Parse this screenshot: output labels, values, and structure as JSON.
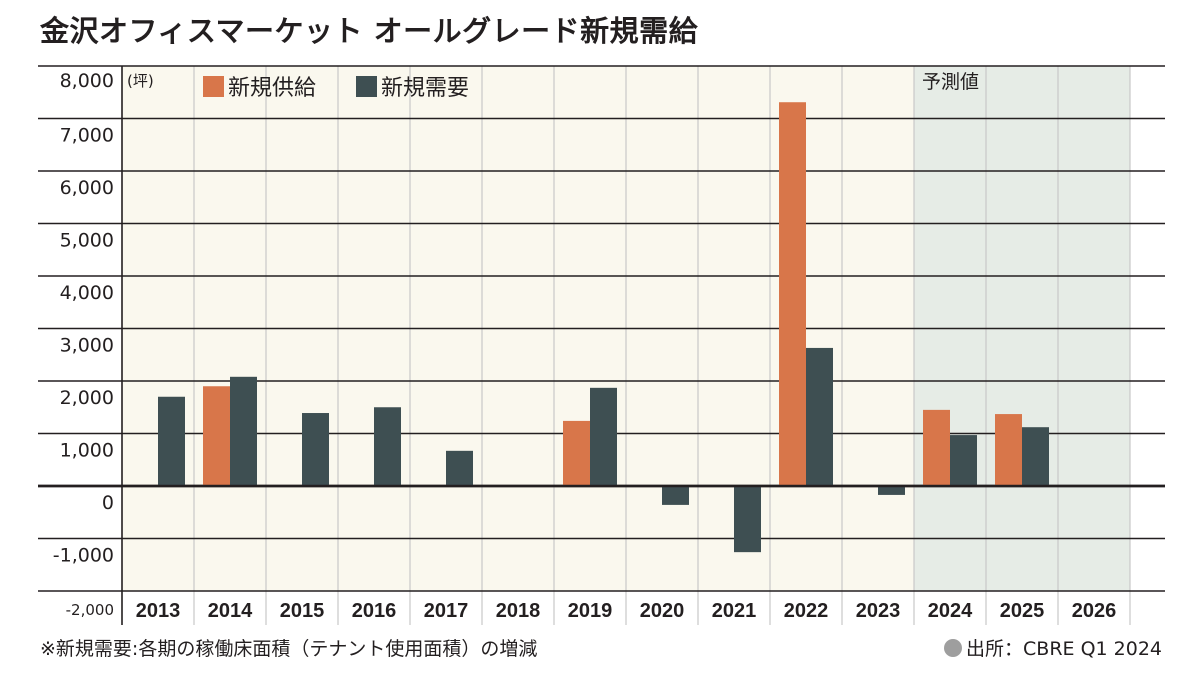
{
  "title": "金沢オフィスマーケット オールグレード新規需給",
  "footnote": "※新規需要:各期の稼働床面積（テナント使用面積）の増減",
  "source": "出所：CBRE Q1 2024",
  "colors": {
    "supply": "#d8764a",
    "demand": "#3e4f52",
    "plot_bg": "#faf8ee",
    "forecast_bg": "#e6ece6",
    "grid": "#231f20",
    "vgrid": "#c8c8c8"
  },
  "chart_data": {
    "type": "bar",
    "title": "金沢オフィスマーケット オールグレード新規需給",
    "xlabel": "",
    "ylabel": "(坪)",
    "unit_label": "(坪)",
    "ylim": [
      -2000,
      8000
    ],
    "yticks": [
      8000,
      7000,
      6000,
      5000,
      4000,
      3000,
      2000,
      1000,
      0,
      -1000,
      -2000
    ],
    "ytick_labels": [
      "8,000",
      "7,000",
      "6,000",
      "5,000",
      "4,000",
      "3,000",
      "2,000",
      "1,000",
      "0",
      "-1,000",
      "-2,000"
    ],
    "grid": true,
    "legend_position": "top-left",
    "categories": [
      "2013",
      "2014",
      "2015",
      "2016",
      "2017",
      "2018",
      "2019",
      "2020",
      "2021",
      "2022",
      "2023",
      "2024",
      "2025",
      "2026"
    ],
    "forecast_label": "予測値",
    "forecast_categories": [
      "2024",
      "2025",
      "2026"
    ],
    "series": [
      {
        "name": "新規供給",
        "key": "supply",
        "values": [
          0,
          1900,
          0,
          0,
          0,
          0,
          1240,
          0,
          0,
          7310,
          0,
          1450,
          1370,
          0
        ]
      },
      {
        "name": "新規需要",
        "key": "demand",
        "values": [
          1700,
          2080,
          1390,
          1500,
          670,
          0,
          1870,
          -360,
          -1260,
          2630,
          -170,
          970,
          1120,
          0
        ]
      }
    ]
  }
}
